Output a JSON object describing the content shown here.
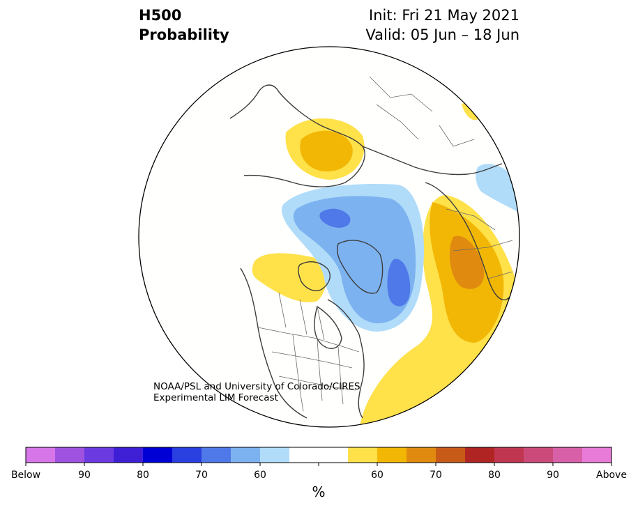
{
  "title": {
    "variable": "H500",
    "subtitle": "Probability",
    "init": "Init: Fri 21 May 2021",
    "valid": "Valid: 05 Jun – 18 Jun"
  },
  "credit": {
    "line1": "NOAA/PSL and University of Colorado/CIRES",
    "line2": "Experimental LIM Forecast"
  },
  "colorbar": {
    "colors": [
      "#d676e8",
      "#9f52e0",
      "#6b3ae0",
      "#3e1fd6",
      "#0000d6",
      "#2a3fe0",
      "#4f78e8",
      "#7db2f0",
      "#b0dcfa",
      "#ffffff",
      "#ffffff",
      "#ffe14a",
      "#f2b705",
      "#e08a10",
      "#c85a18",
      "#b02424",
      "#c03650",
      "#cc4a7a",
      "#d860a8",
      "#e87ad8"
    ],
    "labels": [
      "Below",
      "90",
      "80",
      "70",
      "60",
      "60",
      "70",
      "80",
      "90",
      "Above"
    ],
    "unit": "%"
  },
  "map": {
    "projection": "north-polar-stereographic",
    "features": [
      "coastlines",
      "country-borders",
      "us-state-borders",
      "canada-province-borders"
    ],
    "anomalies": [
      {
        "region": "Scandinavia-north-Russia",
        "sign": "above",
        "category": "60"
      },
      {
        "region": "Scandinavia-core",
        "sign": "above",
        "category": "60-65"
      },
      {
        "region": "western-Canada-Alaska",
        "sign": "above",
        "category": "55-60"
      },
      {
        "region": "North-Pacific-subtropics",
        "sign": "above",
        "category": "55-60"
      },
      {
        "region": "central-Siberia",
        "sign": "above",
        "category": "70"
      },
      {
        "region": "East-Siberia",
        "sign": "below",
        "category": "55-60"
      },
      {
        "region": "Arctic-Ocean-Beaufort",
        "sign": "below",
        "category": "60-65"
      },
      {
        "region": "Hudson-Bay-Baffin",
        "sign": "below",
        "category": "65"
      }
    ]
  }
}
